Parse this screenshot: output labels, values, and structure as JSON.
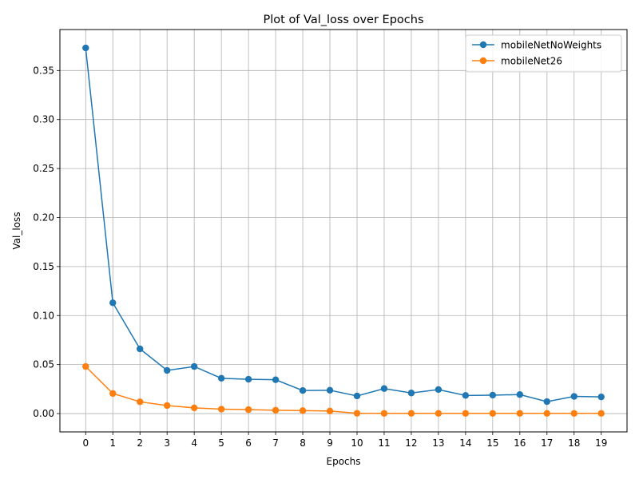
{
  "chart_data": {
    "type": "line",
    "title": "Plot of Val_loss over Epochs",
    "xlabel": "Epochs",
    "ylabel": "Val_loss",
    "x": [
      0,
      1,
      2,
      3,
      4,
      5,
      6,
      7,
      8,
      9,
      10,
      11,
      12,
      13,
      14,
      15,
      16,
      17,
      18,
      19
    ],
    "xticks": [
      "0",
      "1",
      "2",
      "3",
      "4",
      "5",
      "6",
      "7",
      "8",
      "9",
      "10",
      "11",
      "12",
      "13",
      "14",
      "15",
      "16",
      "17",
      "18",
      "19"
    ],
    "yticks": [
      "0.00",
      "0.05",
      "0.10",
      "0.15",
      "0.20",
      "0.25",
      "0.30",
      "0.35"
    ],
    "ytick_values": [
      0.0,
      0.05,
      0.1,
      0.15,
      0.2,
      0.25,
      0.3,
      0.35
    ],
    "xlim": [
      -0.95,
      19.95
    ],
    "ylim": [
      -0.0187,
      0.3918
    ],
    "grid": true,
    "legend_position": "top-right",
    "series": [
      {
        "name": "mobileNetNoWeights",
        "color": "#1f77b4",
        "values": [
          0.373,
          0.113,
          0.066,
          0.044,
          0.048,
          0.036,
          0.035,
          0.0345,
          0.0235,
          0.0238,
          0.018,
          0.0255,
          0.021,
          0.0245,
          0.0185,
          0.0188,
          0.0194,
          0.0122,
          0.0175,
          0.017
        ]
      },
      {
        "name": "mobileNet26",
        "color": "#ff7f0e",
        "values": [
          0.048,
          0.0205,
          0.012,
          0.0082,
          0.0058,
          0.0045,
          0.004,
          0.0034,
          0.003,
          0.0026,
          0.0003,
          0.0002,
          0.0002,
          0.0002,
          0.0002,
          0.0002,
          0.0002,
          0.0002,
          0.0002,
          0.0002
        ]
      }
    ]
  }
}
